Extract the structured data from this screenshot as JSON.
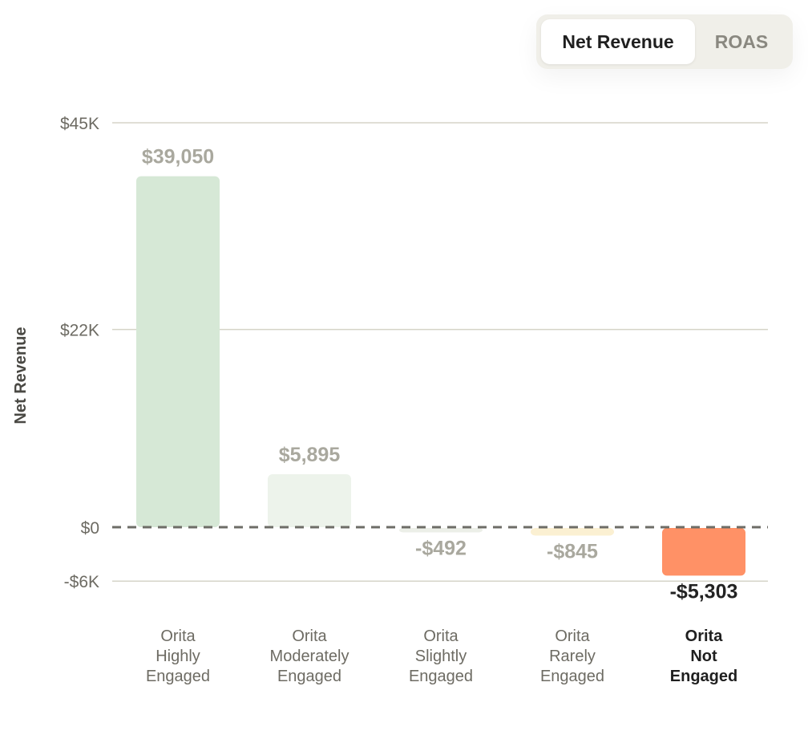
{
  "toggle": {
    "active_label": "Net Revenue",
    "inactive_label": "ROAS"
  },
  "chart_data": {
    "type": "bar",
    "ylabel": "Net Revenue",
    "xlabel": "",
    "ylim": [
      -6000,
      45000
    ],
    "yticks": [
      {
        "value": 45000,
        "label": "$45K"
      },
      {
        "value": 22000,
        "label": "$22K"
      },
      {
        "value": 0,
        "label": "$0"
      },
      {
        "value": -6000,
        "label": "-$6K"
      }
    ],
    "categories": [
      [
        "Orita",
        "Highly",
        "Engaged"
      ],
      [
        "Orita",
        "Moderately",
        "Engaged"
      ],
      [
        "Orita",
        "Slightly",
        "Engaged"
      ],
      [
        "Orita",
        "Rarely",
        "Engaged"
      ],
      [
        "Orita",
        "Not",
        "Engaged"
      ]
    ],
    "values": [
      39050,
      5895,
      -492,
      -845,
      -5303
    ],
    "value_labels": [
      "$39,050",
      "$5,895",
      "-$492",
      "-$845",
      "-$5,303"
    ],
    "bar_colors": [
      "#d6e8d6",
      "#edf3eb",
      "#ecefe8",
      "#fbf0d2",
      "#ff9166"
    ],
    "highlighted_index": 4,
    "zero_line": "dashed",
    "grid": true
  }
}
